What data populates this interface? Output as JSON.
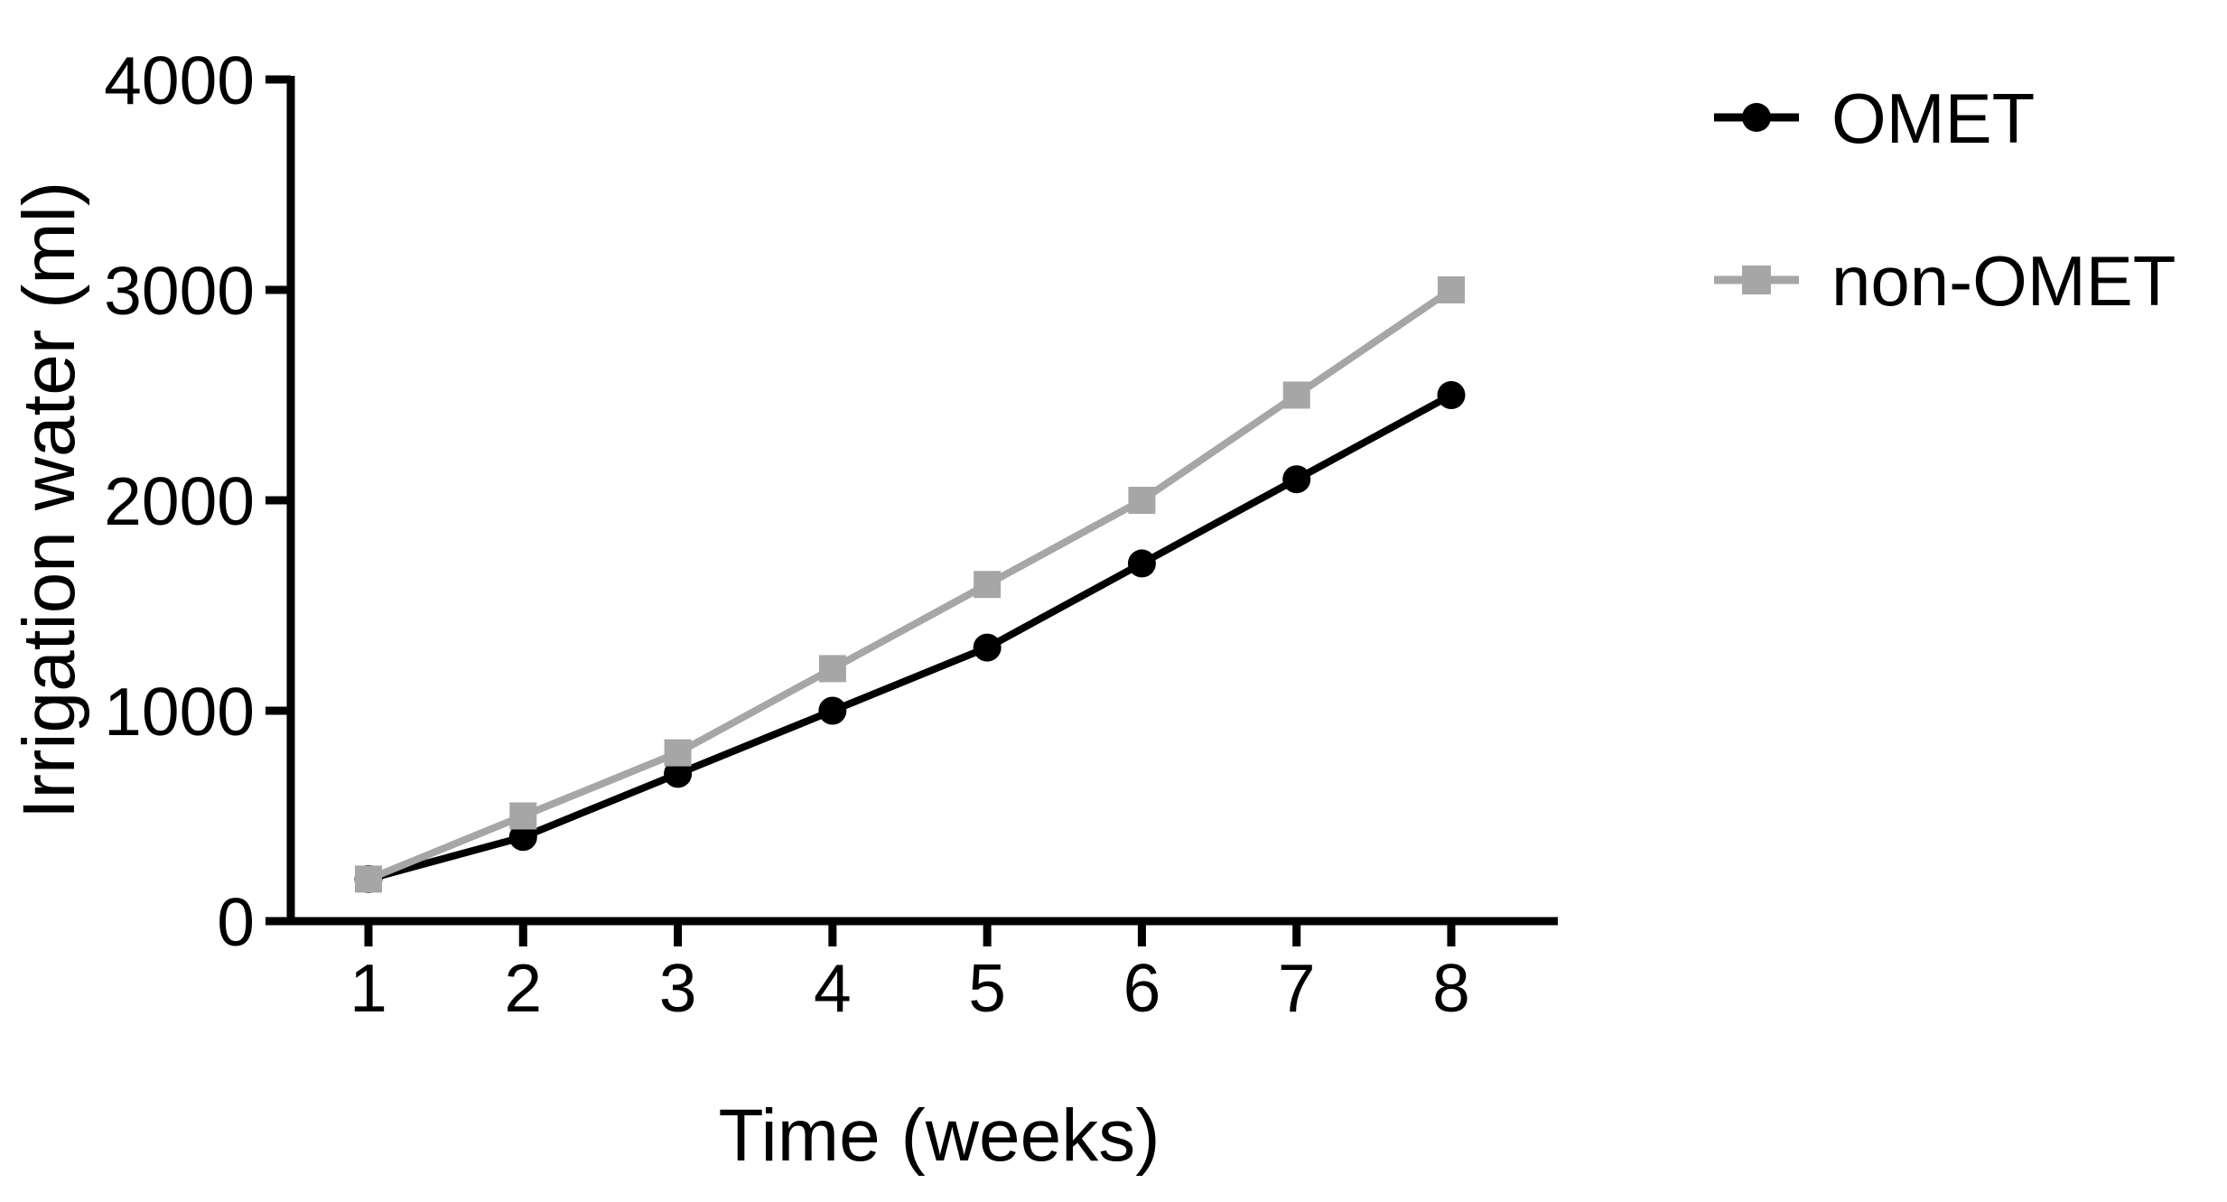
{
  "chart_data": {
    "type": "line",
    "title": "",
    "xlabel": "Time (weeks)",
    "ylabel": "Irrigation water (ml)",
    "x": [
      1,
      2,
      3,
      4,
      5,
      6,
      7,
      8
    ],
    "xticks": [
      "1",
      "2",
      "3",
      "4",
      "5",
      "6",
      "7",
      "8"
    ],
    "yticks": [
      0,
      1000,
      2000,
      3000,
      4000
    ],
    "ytick_labels": [
      "0",
      "1000",
      "2000",
      "3000",
      "4000"
    ],
    "ylim": [
      0,
      4000
    ],
    "grid": false,
    "legend_position": "right-top",
    "series": [
      {
        "name": "OMET",
        "marker": "circle",
        "color": "#000000",
        "values": [
          200,
          400,
          700,
          1000,
          1300,
          1700,
          2100,
          2500
        ]
      },
      {
        "name": "non-OMET",
        "marker": "square",
        "color": "#a6a6a6",
        "values": [
          200,
          500,
          800,
          1200,
          1600,
          2000,
          2500,
          3000
        ]
      }
    ]
  }
}
